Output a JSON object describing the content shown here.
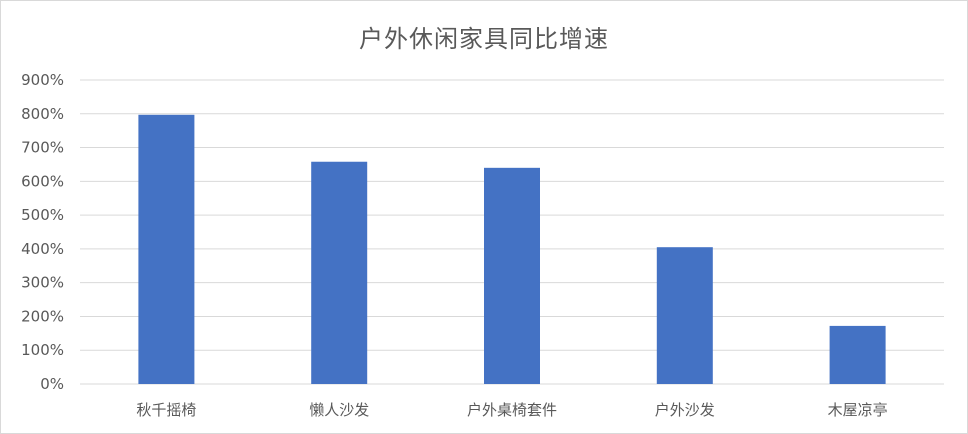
{
  "chart_data": {
    "type": "bar",
    "title": "户外休闲家具同比增速",
    "categories": [
      "秋千摇椅",
      "懒人沙发",
      "户外桌椅套件",
      "户外沙发",
      "木屋凉亭"
    ],
    "values": [
      7.97,
      6.58,
      6.4,
      4.05,
      1.72
    ],
    "ylim": [
      0,
      9
    ],
    "yticks": [
      0,
      1,
      2,
      3,
      4,
      5,
      6,
      7,
      8,
      9
    ],
    "ytick_labels": [
      "0%",
      "100%",
      "200%",
      "300%",
      "400%",
      "500%",
      "600%",
      "700%",
      "800%",
      "900%"
    ],
    "grid": true,
    "bar_color": "#4472c4",
    "grid_color": "#d9d9d9",
    "xlabel": "",
    "ylabel": ""
  }
}
